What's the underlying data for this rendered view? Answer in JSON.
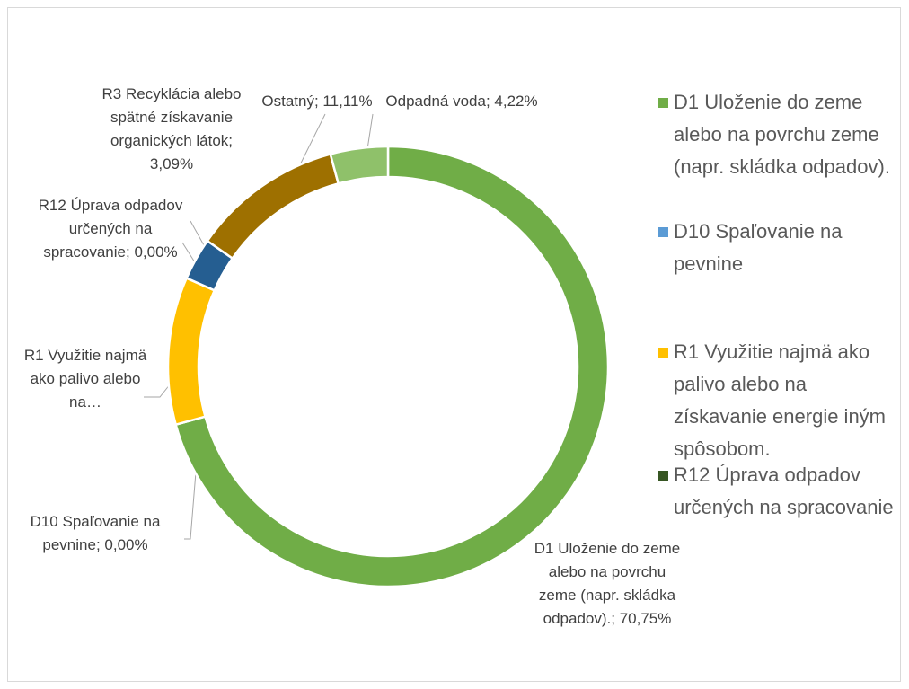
{
  "chart_data": {
    "type": "donut",
    "categories": [
      "D1 Uloženie do zeme alebo na povrchu zeme (napr. skládka odpadov).",
      "D10 Spaľovanie na pevnine",
      "R1 Využitie najmä ako palivo alebo na získavanie energie iným spôsobom.",
      "R12 Úprava odpadov určených na spracovanie",
      "R3 Recyklácia alebo spätné získavanie organických látok",
      "Ostatný",
      "Odpadná voda"
    ],
    "values": [
      70.75,
      0,
      10.83,
      0,
      3.09,
      11.11,
      4.22
    ],
    "value_labels": [
      "D1 Uloženie do zeme alebo na povrchu zeme (napr. skládka odpadov).; 70,75%",
      "D10 Spaľovanie na pevnine; 0,00%",
      "R1 Využitie najmä ako palivo alebo na…",
      "R12 Úprava odpadov určených na spracovanie; 0,00%",
      "R3 Recyklácia alebo spätné získavanie organických látok; 3,09%",
      "Ostatný; 11,11%",
      "Odpadná voda; 4,22%"
    ],
    "colors": [
      "#70ad47",
      "#5b9bd5",
      "#ffc000",
      "#375623",
      "#255e91",
      "#9e7000",
      "#8fc16a"
    ],
    "legend": {
      "position": "right",
      "entries": [
        0,
        1,
        2,
        3
      ]
    }
  }
}
